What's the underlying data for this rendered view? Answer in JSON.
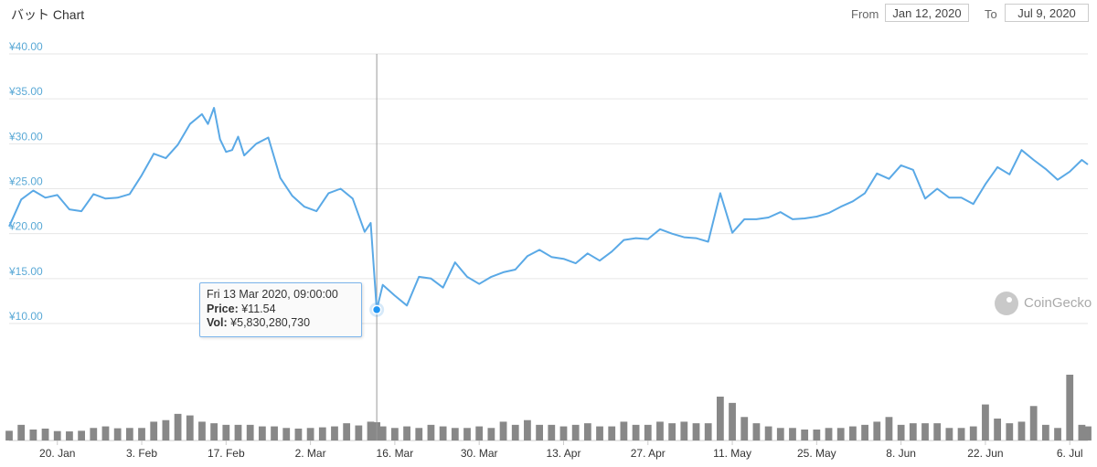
{
  "header": {
    "title": "バット Chart",
    "from_label": "From",
    "from_value": "Jan 12, 2020",
    "to_label": "To",
    "to_value": "Jul 9, 2020"
  },
  "tooltip": {
    "date": "Fri 13 Mar 2020, 09:00:00",
    "price_label": "Price:",
    "price_value": "¥11.54",
    "vol_label": "Vol:",
    "vol_value": "¥5,830,280,730"
  },
  "watermark": "CoinGecko",
  "colors": {
    "line": "#5aa9e6",
    "bars": "#888888",
    "crosshair": "#999999",
    "grid": "#e6e6e6",
    "axis_labels": "#5aa9d6"
  },
  "chart_data": {
    "type": "line",
    "title": "バット Chart",
    "currency": "¥",
    "x_range": [
      "2020-01-12",
      "2020-07-09"
    ],
    "ylim": [
      10,
      40
    ],
    "y_ticks": [
      "¥10.00",
      "¥15.00",
      "¥20.00",
      "¥25.00",
      "¥30.00",
      "¥35.00",
      "¥40.00"
    ],
    "x_ticks": [
      "20. Jan",
      "3. Feb",
      "17. Feb",
      "2. Mar",
      "16. Mar",
      "30. Mar",
      "13. Apr",
      "27. Apr",
      "11. May",
      "25. May",
      "8. Jun",
      "22. Jun",
      "6. Jul"
    ],
    "x_tick_dates": [
      "2020-01-20",
      "2020-02-03",
      "2020-02-17",
      "2020-03-02",
      "2020-03-16",
      "2020-03-30",
      "2020-04-13",
      "2020-04-27",
      "2020-05-11",
      "2020-05-25",
      "2020-06-08",
      "2020-06-22",
      "2020-07-06"
    ],
    "grid": true,
    "highlight": {
      "date": "2020-03-13",
      "price": 11.54,
      "volume": 5830280730
    },
    "series": [
      {
        "name": "Price",
        "x": [
          "2020-01-12",
          "2020-01-14",
          "2020-01-16",
          "2020-01-18",
          "2020-01-20",
          "2020-01-22",
          "2020-01-24",
          "2020-01-26",
          "2020-01-28",
          "2020-01-30",
          "2020-02-01",
          "2020-02-03",
          "2020-02-05",
          "2020-02-07",
          "2020-02-09",
          "2020-02-11",
          "2020-02-13",
          "2020-02-14",
          "2020-02-15",
          "2020-02-16",
          "2020-02-17",
          "2020-02-18",
          "2020-02-19",
          "2020-02-20",
          "2020-02-22",
          "2020-02-24",
          "2020-02-26",
          "2020-02-28",
          "2020-03-01",
          "2020-03-03",
          "2020-03-05",
          "2020-03-07",
          "2020-03-09",
          "2020-03-11",
          "2020-03-12",
          "2020-03-13",
          "2020-03-14",
          "2020-03-16",
          "2020-03-18",
          "2020-03-20",
          "2020-03-22",
          "2020-03-24",
          "2020-03-26",
          "2020-03-28",
          "2020-03-30",
          "2020-04-01",
          "2020-04-03",
          "2020-04-05",
          "2020-04-07",
          "2020-04-09",
          "2020-04-11",
          "2020-04-13",
          "2020-04-15",
          "2020-04-17",
          "2020-04-19",
          "2020-04-21",
          "2020-04-23",
          "2020-04-25",
          "2020-04-27",
          "2020-04-29",
          "2020-05-01",
          "2020-05-03",
          "2020-05-05",
          "2020-05-07",
          "2020-05-09",
          "2020-05-11",
          "2020-05-13",
          "2020-05-15",
          "2020-05-17",
          "2020-05-19",
          "2020-05-21",
          "2020-05-23",
          "2020-05-25",
          "2020-05-27",
          "2020-05-29",
          "2020-05-31",
          "2020-06-02",
          "2020-06-04",
          "2020-06-06",
          "2020-06-08",
          "2020-06-10",
          "2020-06-12",
          "2020-06-14",
          "2020-06-16",
          "2020-06-18",
          "2020-06-20",
          "2020-06-22",
          "2020-06-24",
          "2020-06-26",
          "2020-06-28",
          "2020-06-30",
          "2020-07-02",
          "2020-07-04",
          "2020-07-06",
          "2020-07-08",
          "2020-07-09"
        ],
        "values": [
          20.8,
          23.8,
          24.8,
          24.0,
          24.3,
          22.7,
          22.5,
          24.4,
          23.9,
          24.0,
          24.4,
          26.5,
          28.9,
          28.4,
          29.9,
          32.2,
          33.3,
          32.2,
          34.0,
          30.5,
          29.1,
          29.3,
          30.8,
          28.7,
          30.0,
          30.7,
          26.2,
          24.2,
          23.0,
          22.5,
          24.5,
          25.0,
          23.9,
          20.2,
          21.2,
          11.54,
          14.3,
          13.1,
          12.0,
          15.2,
          15.0,
          14.0,
          16.8,
          15.2,
          14.4,
          15.2,
          15.7,
          16.0,
          17.5,
          18.2,
          17.4,
          17.2,
          16.7,
          17.8,
          17.0,
          18.0,
          19.3,
          19.5,
          19.4,
          20.5,
          20.0,
          19.6,
          19.5,
          19.1,
          24.5,
          20.1,
          21.6,
          21.6,
          21.8,
          22.4,
          21.6,
          21.7,
          21.9,
          22.3,
          23.0,
          23.6,
          24.5,
          26.7,
          26.1,
          27.6,
          27.1,
          23.9,
          25.0,
          24.0,
          24.0,
          23.3,
          25.5,
          27.4,
          26.6,
          29.3,
          28.2,
          27.2,
          26.0,
          26.9,
          28.2,
          27.7
        ]
      },
      {
        "name": "Vol",
        "x": [
          "2020-01-12",
          "2020-01-14",
          "2020-01-16",
          "2020-01-18",
          "2020-01-20",
          "2020-01-22",
          "2020-01-24",
          "2020-01-26",
          "2020-01-28",
          "2020-01-30",
          "2020-02-01",
          "2020-02-03",
          "2020-02-05",
          "2020-02-07",
          "2020-02-09",
          "2020-02-11",
          "2020-02-13",
          "2020-02-15",
          "2020-02-17",
          "2020-02-19",
          "2020-02-21",
          "2020-02-23",
          "2020-02-25",
          "2020-02-27",
          "2020-02-29",
          "2020-03-02",
          "2020-03-04",
          "2020-03-06",
          "2020-03-08",
          "2020-03-10",
          "2020-03-12",
          "2020-03-13",
          "2020-03-14",
          "2020-03-16",
          "2020-03-18",
          "2020-03-20",
          "2020-03-22",
          "2020-03-24",
          "2020-03-26",
          "2020-03-28",
          "2020-03-30",
          "2020-04-01",
          "2020-04-03",
          "2020-04-05",
          "2020-04-07",
          "2020-04-09",
          "2020-04-11",
          "2020-04-13",
          "2020-04-15",
          "2020-04-17",
          "2020-04-19",
          "2020-04-21",
          "2020-04-23",
          "2020-04-25",
          "2020-04-27",
          "2020-04-29",
          "2020-05-01",
          "2020-05-03",
          "2020-05-05",
          "2020-05-07",
          "2020-05-09",
          "2020-05-11",
          "2020-05-13",
          "2020-05-15",
          "2020-05-17",
          "2020-05-19",
          "2020-05-21",
          "2020-05-23",
          "2020-05-25",
          "2020-05-27",
          "2020-05-29",
          "2020-05-31",
          "2020-06-02",
          "2020-06-04",
          "2020-06-06",
          "2020-06-08",
          "2020-06-10",
          "2020-06-12",
          "2020-06-14",
          "2020-06-16",
          "2020-06-18",
          "2020-06-20",
          "2020-06-22",
          "2020-06-24",
          "2020-06-26",
          "2020-06-28",
          "2020-06-30",
          "2020-07-02",
          "2020-07-04",
          "2020-07-06",
          "2020-07-08",
          "2020-07-09"
        ],
        "values": [
          3.1,
          5.0,
          3.5,
          3.8,
          3.0,
          2.9,
          3.1,
          4.0,
          4.5,
          3.9,
          4.0,
          4.0,
          6.0,
          6.5,
          8.5,
          8.0,
          6.0,
          5.5,
          5.0,
          5.0,
          5.0,
          4.5,
          4.5,
          4.0,
          3.8,
          4.0,
          4.2,
          4.5,
          5.5,
          4.8,
          6.0,
          5.83,
          4.5,
          4.0,
          4.5,
          4.0,
          5.0,
          4.5,
          4.0,
          4.0,
          4.5,
          4.0,
          6.0,
          5.0,
          6.5,
          5.0,
          5.0,
          4.5,
          5.0,
          5.5,
          4.5,
          4.5,
          6.0,
          5.0,
          5.0,
          6.0,
          5.5,
          6.0,
          5.5,
          5.5,
          14.0,
          12.0,
          7.5,
          5.5,
          4.5,
          4.0,
          4.0,
          3.5,
          3.5,
          4.0,
          4.0,
          4.5,
          5.0,
          6.0,
          7.5,
          5.0,
          5.5,
          5.5,
          5.5,
          4.0,
          4.0,
          4.5,
          11.5,
          7.0,
          5.5,
          6.0,
          11.0,
          5.0,
          4.0,
          21.0,
          5.0,
          4.5
        ]
      }
    ]
  }
}
